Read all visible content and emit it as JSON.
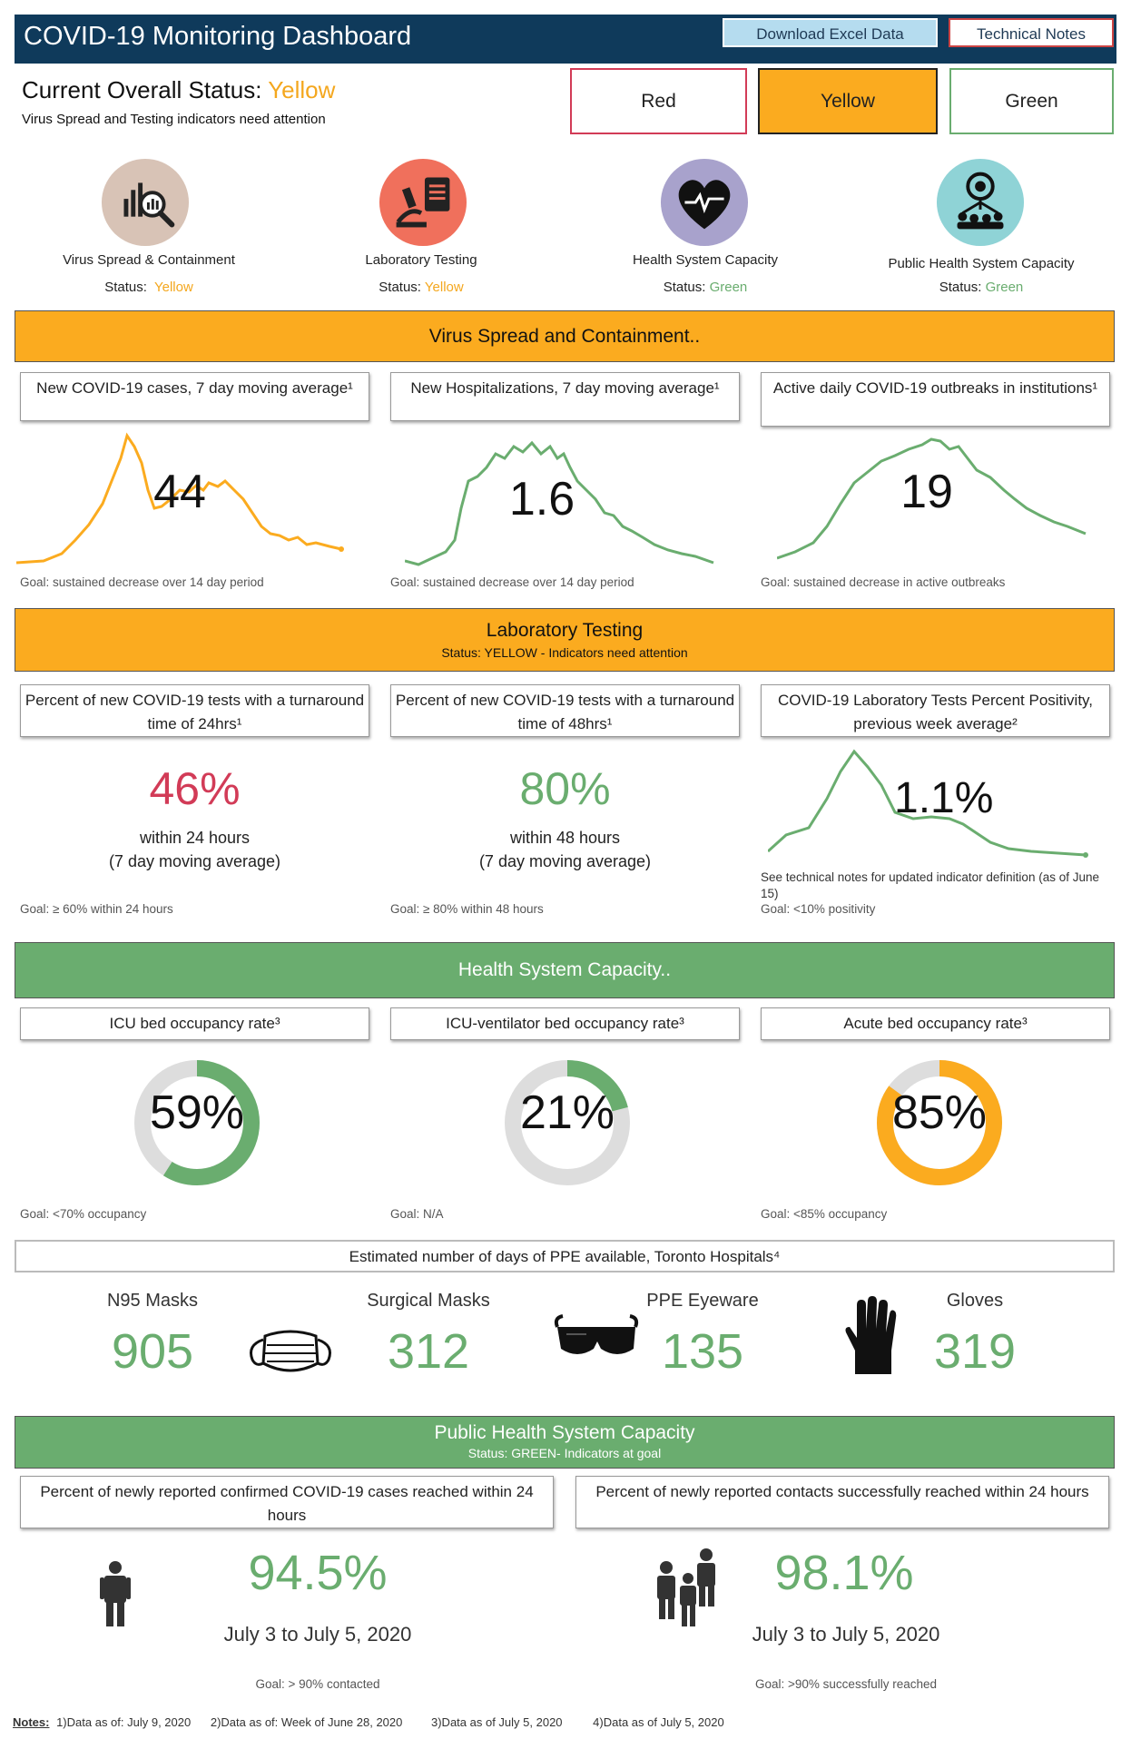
{
  "header": {
    "title": "COVID-19 Monitoring Dashboard",
    "download_label": "Download Excel Data",
    "notes_label": "Technical Notes"
  },
  "overall": {
    "label": "Current Overall Status: ",
    "value": "Yellow",
    "subtitle": "Virus Spread and Testing indicators need attention",
    "buttons": [
      "Red",
      "Yellow",
      "Green"
    ]
  },
  "categories": [
    {
      "label": "Virus Spread & Containment",
      "status_label": "Status:",
      "status": "Yellow",
      "icon": "chart-magnifier-icon"
    },
    {
      "label": "Laboratory Testing",
      "status_label": "Status:",
      "status": "Yellow",
      "icon": "microscope-clipboard-icon"
    },
    {
      "label": "Health System Capacity",
      "status_label": "Status:",
      "status": "Green",
      "icon": "heart-pulse-icon"
    },
    {
      "label": "Public Health System Capacity",
      "status_label": "Status:",
      "status": "Green",
      "icon": "people-network-icon"
    }
  ],
  "virus": {
    "title": "Virus Spread and Containment..",
    "cards": [
      {
        "title": "New COVID-19 cases, 7 day moving average¹",
        "value": "44",
        "goal": "Goal: sustained decrease over 14  day period"
      },
      {
        "title": "New Hospitalizations, 7 day moving average¹",
        "value": "1.6",
        "goal": "Goal: sustained decrease over 14  day period"
      },
      {
        "title": "Active daily COVID-19 outbreaks in institutions¹",
        "value": "19",
        "goal": "Goal: sustained decrease in active outbreaks"
      }
    ]
  },
  "lab": {
    "title": "Laboratory Testing",
    "subtitle": "Status: YELLOW - Indicators need attention",
    "cards": [
      {
        "title": "Percent of new COVID-19 tests with a turnaround time of 24hrs¹",
        "value": "46%",
        "sub1": "within 24 hours",
        "sub2": "(7 day moving average)",
        "goal": "Goal: ≥ 60% within 24  hours",
        "color": "#d23b57"
      },
      {
        "title": "Percent of new COVID-19 tests with a turnaround time of 48hrs¹",
        "value": "80%",
        "sub1": "within 48 hours",
        "sub2": "(7 day moving average)",
        "goal": "Goal:  ≥ 80% within 48 hours",
        "color": "#6aad6f"
      },
      {
        "title": "COVID-19 Laboratory Tests Percent Positivity, previous week average²",
        "value": "1.1%",
        "note": "See technical notes for updated indicator definition (as of June 15)",
        "goal": "Goal: <10% positivity"
      }
    ]
  },
  "health": {
    "title": "Health System Capacity..",
    "cards": [
      {
        "title": "ICU bed occupancy rate³",
        "value": "59%",
        "pct": 59,
        "color": "#6aad6f",
        "goal": "Goal: <70% occupancy"
      },
      {
        "title": "ICU-ventilator bed occupancy rate³",
        "value": "21%",
        "pct": 21,
        "color": "#6aad6f",
        "goal": "Goal: N/A"
      },
      {
        "title": "Acute bed occupancy rate³",
        "value": "85%",
        "pct": 85,
        "color": "#fbab1f",
        "goal": "Goal: <85% occupancy"
      }
    ]
  },
  "ppe": {
    "title": "Estimated number of days of PPE available, Toronto Hospitals⁴",
    "items": [
      {
        "label": "N95 Masks",
        "value": "905",
        "icon": "face-mask-icon"
      },
      {
        "label": "Surgical Masks",
        "value": "312",
        "icon": "goggles-icon"
      },
      {
        "label": "PPE Eyeware",
        "value": "135",
        "icon": "glove-icon"
      },
      {
        "label": "Gloves",
        "value": "319"
      }
    ]
  },
  "public": {
    "title": "Public Health System Capacity",
    "subtitle": "Status: GREEN- Indicators at goal",
    "cards": [
      {
        "title": "Percent of newly reported confirmed COVID-19 cases reached within 24 hours",
        "value": "94.5%",
        "period": "July 3 to July 5, 2020",
        "goal": "Goal: > 90% contacted",
        "icon": "person-icon"
      },
      {
        "title": "Percent of newly reported contacts successfully reached within 24 hours",
        "value": "98.1%",
        "period": "July 3 to July 5, 2020",
        "goal": "Goal:  >90% successfully reached",
        "icon": "group-icon"
      }
    ]
  },
  "notes": {
    "label": "Notes:",
    "items": [
      "1)Data as of: July 9, 2020",
      "2)Data as of: Week of June 28, 2020",
      "3)Data as of July 5, 2020",
      "4)Data as of July 5, 2020"
    ]
  },
  "colors": {
    "navy": "#0f3a5b",
    "yellow": "#fbab1f",
    "green": "#6aad6f",
    "red": "#d23b57",
    "grey": "#dddddd"
  }
}
